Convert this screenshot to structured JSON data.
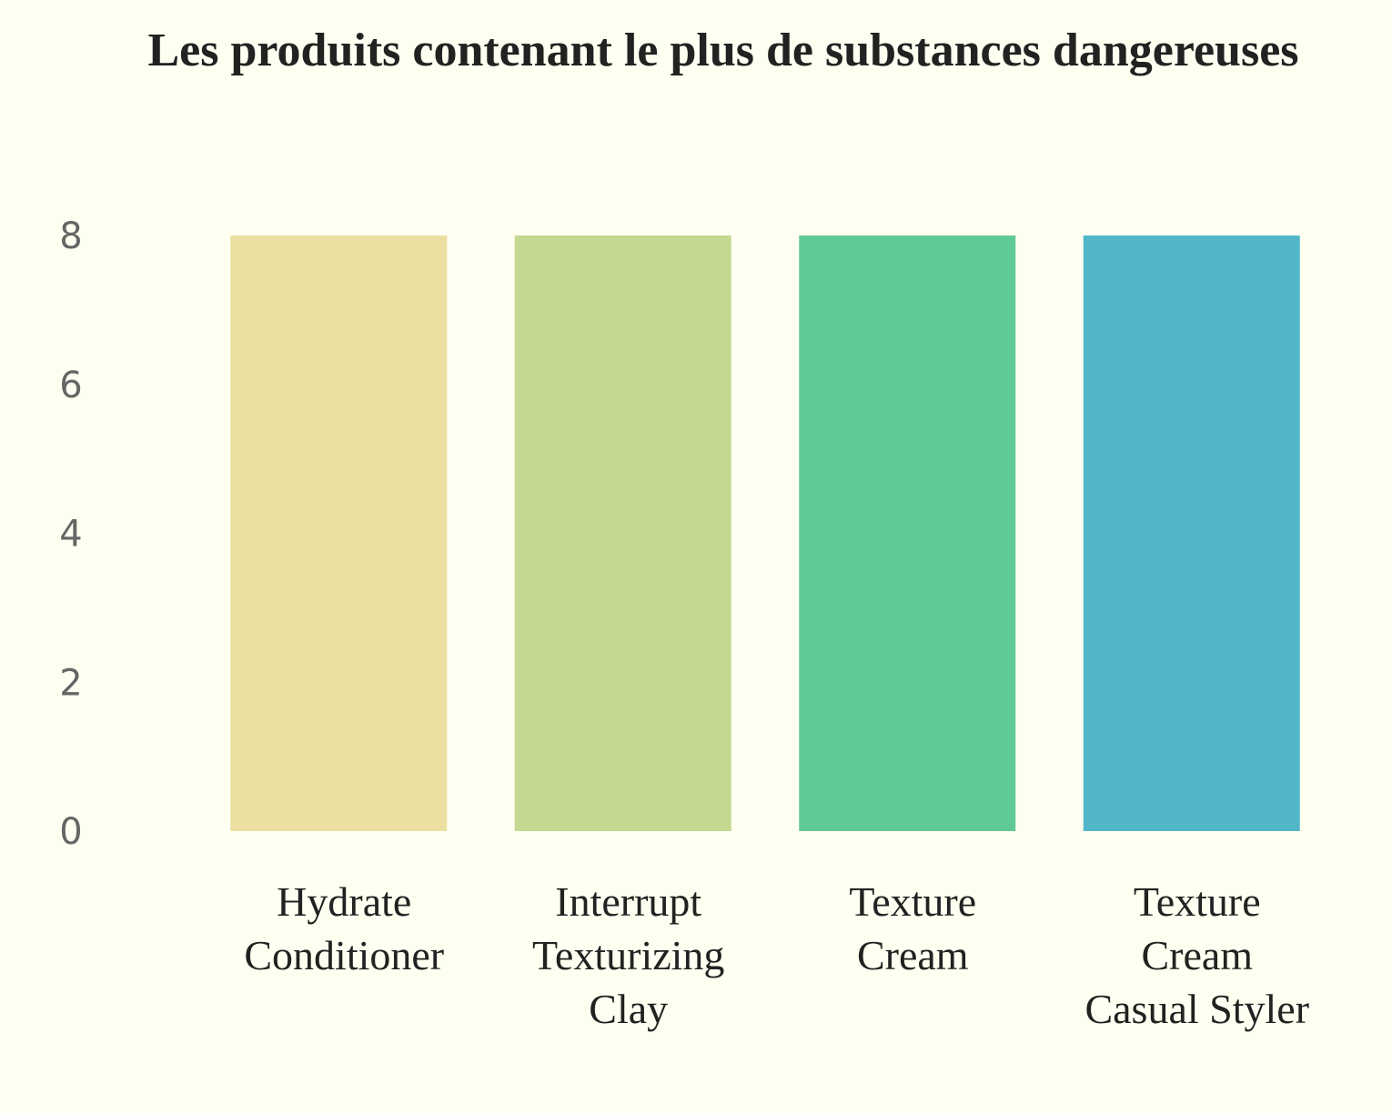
{
  "chart_data": {
    "type": "bar",
    "title": "Les produits contenant le plus de substances dangereuses",
    "xlabel": "",
    "ylabel": "",
    "categories": [
      [
        "Hydrate",
        "Conditioner"
      ],
      [
        "Interrupt",
        "Texturizing",
        "Clay"
      ],
      [
        "Texture",
        "Cream"
      ],
      [
        "Texture",
        "Cream",
        "Casual Styler"
      ]
    ],
    "values": [
      8,
      8,
      8,
      8
    ],
    "colors": [
      "#ebdfa1",
      "#c4d891",
      "#5fca94",
      "#52b6c9"
    ],
    "ylim": [
      0,
      8
    ],
    "yticks": [
      "0",
      "2",
      "4",
      "6",
      "8"
    ],
    "grid": false,
    "legend": "none"
  }
}
